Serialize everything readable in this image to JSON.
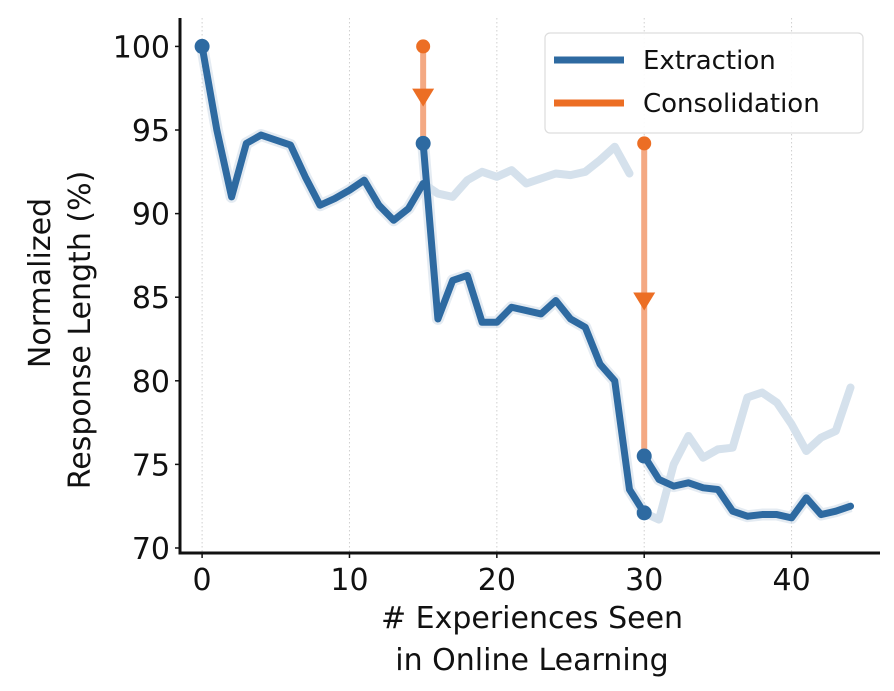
{
  "chart_data": {
    "type": "line",
    "title": "",
    "xlabel_lines": [
      "# Experiences Seen",
      "in Online Learning"
    ],
    "ylabel_lines": [
      "Normalized",
      "Response Length (%)"
    ],
    "xlim": [
      -1.5,
      46
    ],
    "ylim": [
      69.7,
      101.7
    ],
    "xticks": [
      0,
      10,
      20,
      30,
      40
    ],
    "yticks": [
      70,
      75,
      80,
      85,
      90,
      95,
      100
    ],
    "grid": "vertical-dotted",
    "legend": {
      "placement": "top-right",
      "entries": [
        {
          "label": "Extraction",
          "color": "#2e6aa1"
        },
        {
          "label": "Consolidation",
          "color": "#ec6e24"
        }
      ]
    },
    "colors": {
      "extraction": "#2e6aa1",
      "extraction_faint": "#d5e1ec",
      "consolidation": "#ec6e24",
      "consolidation_light": "#f4a983"
    },
    "series": [
      {
        "name": "Extraction (segment 1)",
        "style": "main",
        "x": [
          0,
          1,
          2,
          3,
          4,
          5,
          6,
          7,
          8,
          9,
          10,
          11,
          12,
          13,
          14,
          15
        ],
        "y": [
          100,
          95,
          91,
          94.2,
          94.7,
          94.4,
          94.1,
          92.2,
          90.5,
          90.9,
          91.4,
          92,
          90.5,
          89.6,
          90.3,
          91.8
        ]
      },
      {
        "name": "Extraction (segment 2)",
        "style": "main",
        "x": [
          15,
          16,
          17,
          18,
          19,
          20,
          21,
          22,
          23,
          24,
          25,
          26,
          27,
          28,
          29,
          30
        ],
        "y": [
          94.2,
          83.7,
          86,
          86.3,
          83.5,
          83.5,
          84.4,
          84.2,
          84,
          84.8,
          83.7,
          83.2,
          81,
          80,
          73.5,
          72.1
        ]
      },
      {
        "name": "Extraction (segment 3)",
        "style": "main",
        "x": [
          30,
          31,
          32,
          33,
          34,
          35,
          36,
          37,
          38,
          39,
          40,
          41,
          42,
          43,
          44
        ],
        "y": [
          75.5,
          74.1,
          73.7,
          73.9,
          73.6,
          73.5,
          72.2,
          71.9,
          72,
          72,
          71.8,
          73,
          72,
          72.2,
          72.5
        ]
      },
      {
        "name": "Extraction without consolidation (after 15)",
        "style": "faint",
        "x": [
          15,
          16,
          17,
          18,
          19,
          20,
          21,
          22,
          23,
          24,
          25,
          26,
          27,
          28,
          29
        ],
        "y": [
          91.8,
          91.2,
          91,
          92,
          92.5,
          92.2,
          92.6,
          91.8,
          92.1,
          92.4,
          92.3,
          92.5,
          93.2,
          94,
          92.4
        ]
      },
      {
        "name": "Extraction without consolidation (after 30)",
        "style": "faint",
        "x": [
          30,
          31,
          32,
          33,
          34,
          35,
          36,
          37,
          38,
          39,
          40,
          41,
          42,
          43,
          44
        ],
        "y": [
          72.1,
          71.7,
          75,
          76.7,
          75.4,
          75.9,
          76,
          79,
          79.3,
          78.7,
          77.4,
          75.8,
          76.6,
          77,
          79.6
        ]
      }
    ],
    "markers": [
      {
        "x": 0,
        "y": 100
      },
      {
        "x": 15,
        "y": 94.2
      },
      {
        "x": 30,
        "y": 72.1
      },
      {
        "x": 30,
        "y": 75.5
      }
    ],
    "consolidation_events": [
      {
        "x": 15,
        "from": 100,
        "to": 94.2,
        "arrow_at": 97
      },
      {
        "x": 30,
        "from": 94.2,
        "to": 75.5,
        "arrow_at": 84.8
      }
    ]
  }
}
